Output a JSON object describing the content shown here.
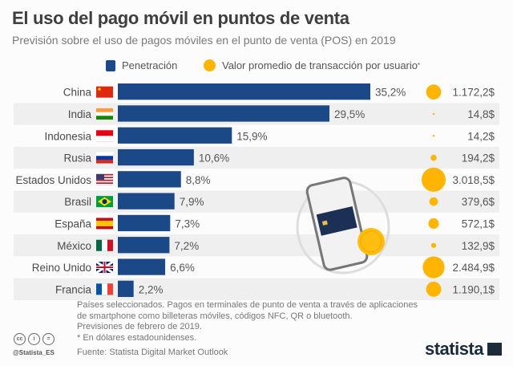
{
  "header": {
    "title": "El uso del pago móvil en puntos de venta",
    "subtitle": "Previsión sobre el uso de pagos móviles en el punto de venta (POS) en 2019"
  },
  "legend": {
    "bar_label": "Penetración",
    "circle_label": "Valor promedio de transacción por usuario",
    "circle_mark": "*"
  },
  "colors": {
    "bar": "#1b4887",
    "circle": "#ffb400",
    "row_alt": "#efefef"
  },
  "chart_data": {
    "type": "bar",
    "orientation": "horizontal",
    "title": "El uso del pago móvil en puntos de venta",
    "subtitle": "Previsión sobre el uso de pagos móviles en el punto de venta (POS) en 2019",
    "categories": [
      "China",
      "India",
      "Indonesia",
      "Rusia",
      "Estados Unidos",
      "Brasil",
      "España",
      "México",
      "Reino Unido",
      "Francia"
    ],
    "flags": [
      "cn",
      "in",
      "id",
      "ru",
      "us",
      "br",
      "es",
      "mx",
      "gb",
      "fr"
    ],
    "series": [
      {
        "name": "Penetración",
        "unit": "%",
        "values": [
          35.2,
          29.5,
          15.9,
          10.6,
          8.8,
          7.9,
          7.3,
          7.2,
          6.6,
          2.2
        ],
        "labels": [
          "35,2%",
          "29,5%",
          "15,9%",
          "10,6%",
          "8,8%",
          "7,9%",
          "7,3%",
          "7,2%",
          "6,6%",
          "2,2%"
        ]
      },
      {
        "name": "Valor promedio de transacción por usuario",
        "unit": "USD",
        "values": [
          1172.2,
          14.8,
          14.2,
          194.2,
          3018.5,
          379.6,
          572.1,
          132.9,
          2484.9,
          1190.1
        ],
        "labels": [
          "1.172,2$",
          "14,8$",
          "14,2$",
          "194,2$",
          "3.018,5$",
          "379,6$",
          "572,1$",
          "132,9$",
          "2.484,9$",
          "1.190,1$"
        ]
      }
    ],
    "xlim": [
      0,
      35.2
    ],
    "legend_position": "top-center"
  },
  "footer": {
    "notes": [
      "Países seleccionados. Pagos en terminales de punto de venta a través de aplicaciones",
      "de smartphone como billeteras móviles, códigos NFC, QR o bluetooth.",
      "Previsiones de febrero de 2019.",
      "* En dólares estadounidenses."
    ],
    "source": "Fuente: Statista Digital Market Outlook",
    "handle": "@Statista_ES",
    "brand": "statista",
    "cc_icons": [
      "cc",
      "i",
      "="
    ]
  }
}
